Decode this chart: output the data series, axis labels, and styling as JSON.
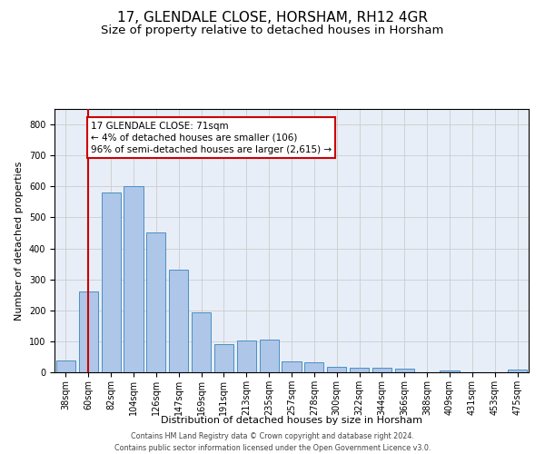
{
  "title": "17, GLENDALE CLOSE, HORSHAM, RH12 4GR",
  "subtitle": "Size of property relative to detached houses in Horsham",
  "xlabel": "Distribution of detached houses by size in Horsham",
  "ylabel": "Number of detached properties",
  "footer_line1": "Contains HM Land Registry data © Crown copyright and database right 2024.",
  "footer_line2": "Contains public sector information licensed under the Open Government Licence v3.0.",
  "categories": [
    "38sqm",
    "60sqm",
    "82sqm",
    "104sqm",
    "126sqm",
    "147sqm",
    "169sqm",
    "191sqm",
    "213sqm",
    "235sqm",
    "257sqm",
    "278sqm",
    "300sqm",
    "322sqm",
    "344sqm",
    "366sqm",
    "388sqm",
    "409sqm",
    "431sqm",
    "453sqm",
    "475sqm"
  ],
  "values": [
    38,
    262,
    580,
    600,
    450,
    330,
    193,
    90,
    102,
    105,
    36,
    32,
    18,
    16,
    14,
    11,
    0,
    7,
    0,
    0,
    8
  ],
  "bar_color": "#aec6e8",
  "bar_edge_color": "#4a90c4",
  "red_line_x": 1,
  "annotation_text": "17 GLENDALE CLOSE: 71sqm\n← 4% of detached houses are smaller (106)\n96% of semi-detached houses are larger (2,615) →",
  "annotation_box_color": "#ffffff",
  "annotation_box_edge_color": "#cc0000",
  "red_line_color": "#cc0000",
  "ylim": [
    0,
    850
  ],
  "yticks": [
    0,
    100,
    200,
    300,
    400,
    500,
    600,
    700,
    800
  ],
  "grid_color": "#cccccc",
  "bg_color": "#e8eef7",
  "title_fontsize": 11,
  "subtitle_fontsize": 9.5,
  "axis_label_fontsize": 8,
  "tick_fontsize": 7,
  "footer_fontsize": 5.8
}
